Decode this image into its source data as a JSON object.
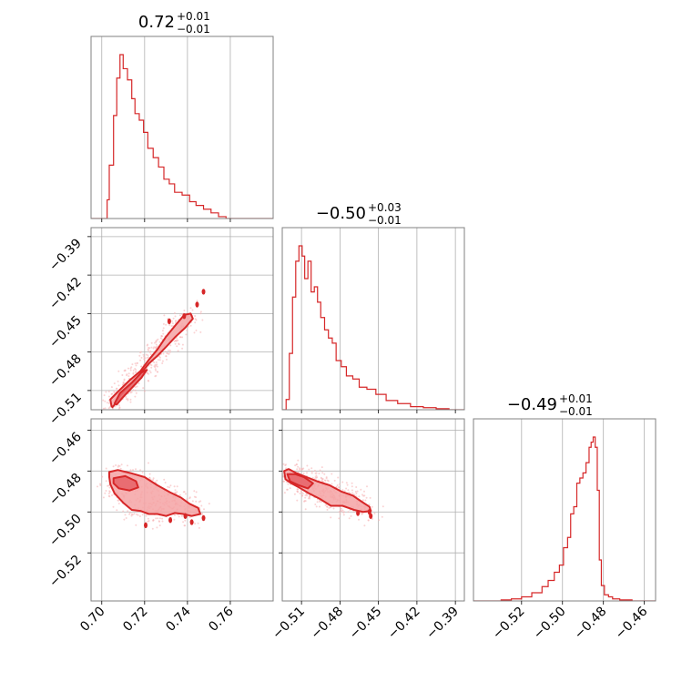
{
  "chart_data": {
    "type": "corner",
    "color": "#d62728",
    "parameters": [
      {
        "title_value": "0.72",
        "title_plus": "+0.01",
        "title_minus": "−0.01",
        "range": [
          0.695,
          0.78
        ],
        "ticks": [
          0.7,
          0.72,
          0.74,
          0.76
        ],
        "tick_labels": [
          "0.70",
          "0.72",
          "0.74",
          "0.76"
        ]
      },
      {
        "title_value": "−0.50",
        "title_plus": "+0.03",
        "title_minus": "−0.01",
        "range": [
          -0.525,
          -0.383
        ],
        "ticks": [
          -0.51,
          -0.48,
          -0.45,
          -0.42,
          -0.39
        ],
        "tick_labels": [
          "−0.51",
          "−0.48",
          "−0.45",
          "−0.42",
          "−0.39"
        ]
      },
      {
        "title_value": "−0.49",
        "title_plus": "+0.01",
        "title_minus": "−0.01",
        "range": [
          -0.5435,
          -0.4545
        ],
        "ticks": [
          -0.52,
          -0.5,
          -0.48,
          -0.46
        ],
        "tick_labels": [
          "−0.52",
          "−0.50",
          "−0.48",
          "−0.46"
        ]
      }
    ],
    "histograms": [
      {
        "param": 0,
        "edges": [
          0.695,
          0.7025,
          0.7035,
          0.7055,
          0.707,
          0.7085,
          0.71,
          0.712,
          0.714,
          0.7155,
          0.7175,
          0.7195,
          0.7215,
          0.724,
          0.7265,
          0.729,
          0.7315,
          0.734,
          0.7375,
          0.741,
          0.744,
          0.7475,
          0.751,
          0.7545,
          0.758,
          0.78
        ],
        "counts": [
          0,
          20,
          57,
          110,
          150,
          175,
          160,
          148,
          128,
          112,
          105,
          92,
          75,
          65,
          55,
          42,
          37,
          28,
          25,
          18,
          14,
          10,
          6,
          2,
          0
        ]
      },
      {
        "param": 1,
        "edges": [
          -0.525,
          -0.522,
          -0.5195,
          -0.517,
          -0.5145,
          -0.512,
          -0.5095,
          -0.5075,
          -0.505,
          -0.5025,
          -0.5,
          -0.4975,
          -0.495,
          -0.492,
          -0.489,
          -0.486,
          -0.483,
          -0.479,
          -0.475,
          -0.47,
          -0.465,
          -0.459,
          -0.452,
          -0.444,
          -0.435,
          -0.425,
          -0.415,
          -0.405,
          -0.395,
          -0.383
        ],
        "counts": [
          0,
          10,
          55,
          110,
          145,
          160,
          150,
          128,
          145,
          115,
          120,
          105,
          90,
          78,
          70,
          65,
          48,
          42,
          33,
          30,
          22,
          20,
          15,
          9,
          6,
          3,
          2,
          1,
          0
        ]
      },
      {
        "param": 2,
        "edges": [
          -0.5435,
          -0.53,
          -0.525,
          -0.52,
          -0.515,
          -0.51,
          -0.507,
          -0.504,
          -0.5015,
          -0.4995,
          -0.4975,
          -0.496,
          -0.4945,
          -0.493,
          -0.4915,
          -0.49,
          -0.4885,
          -0.487,
          -0.486,
          -0.485,
          -0.484,
          -0.483,
          -0.482,
          -0.481,
          -0.4795,
          -0.4775,
          -0.4755,
          -0.472,
          -0.466,
          -0.4545
        ],
        "counts": [
          0,
          1,
          2,
          4,
          8,
          14,
          20,
          28,
          35,
          52,
          62,
          85,
          92,
          115,
          120,
          125,
          135,
          150,
          155,
          160,
          150,
          108,
          40,
          15,
          6,
          4,
          2,
          1,
          0
        ]
      }
    ],
    "density_2d": [
      {
        "x_param": 0,
        "y_param": 1,
        "outer_contour": [
          [
            0.7045,
            -0.522
          ],
          [
            0.704,
            -0.517
          ],
          [
            0.7075,
            -0.511
          ],
          [
            0.713,
            -0.502
          ],
          [
            0.718,
            -0.495
          ],
          [
            0.722,
            -0.486
          ],
          [
            0.726,
            -0.478
          ],
          [
            0.73,
            -0.468
          ],
          [
            0.7345,
            -0.459
          ],
          [
            0.7385,
            -0.451
          ],
          [
            0.7415,
            -0.45
          ],
          [
            0.7425,
            -0.454
          ],
          [
            0.739,
            -0.461
          ],
          [
            0.7345,
            -0.468
          ],
          [
            0.73,
            -0.476
          ],
          [
            0.726,
            -0.483
          ],
          [
            0.722,
            -0.489
          ],
          [
            0.718,
            -0.497
          ],
          [
            0.713,
            -0.506
          ],
          [
            0.7085,
            -0.514
          ],
          [
            0.706,
            -0.521
          ],
          [
            0.705,
            -0.523
          ]
        ],
        "inner_contour": [
          [
            0.706,
            -0.52
          ],
          [
            0.7085,
            -0.512
          ],
          [
            0.714,
            -0.504
          ],
          [
            0.7185,
            -0.496
          ],
          [
            0.721,
            -0.494
          ],
          [
            0.7185,
            -0.5
          ],
          [
            0.714,
            -0.508
          ],
          [
            0.7095,
            -0.516
          ],
          [
            0.707,
            -0.521
          ]
        ],
        "islands": [
          [
            0.7475,
            -0.433
          ],
          [
            0.7315,
            -0.456
          ],
          [
            0.7385,
            -0.452
          ],
          [
            0.7445,
            -0.443
          ]
        ]
      },
      {
        "x_param": 0,
        "y_param": 2,
        "outer_contour": [
          [
            0.7035,
            -0.4805
          ],
          [
            0.7075,
            -0.4795
          ],
          [
            0.7135,
            -0.481
          ],
          [
            0.72,
            -0.483
          ],
          [
            0.726,
            -0.487
          ],
          [
            0.732,
            -0.4905
          ],
          [
            0.737,
            -0.493
          ],
          [
            0.741,
            -0.496
          ],
          [
            0.745,
            -0.498
          ],
          [
            0.746,
            -0.501
          ],
          [
            0.742,
            -0.502
          ],
          [
            0.738,
            -0.501
          ],
          [
            0.734,
            -0.5005
          ],
          [
            0.73,
            -0.502
          ],
          [
            0.726,
            -0.501
          ],
          [
            0.722,
            -0.501
          ],
          [
            0.718,
            -0.4995
          ],
          [
            0.714,
            -0.499
          ],
          [
            0.71,
            -0.4955
          ],
          [
            0.706,
            -0.491
          ],
          [
            0.704,
            -0.4865
          ],
          [
            0.7035,
            -0.483
          ]
        ],
        "inner_contour": [
          [
            0.7055,
            -0.4835
          ],
          [
            0.711,
            -0.4825
          ],
          [
            0.716,
            -0.485
          ],
          [
            0.717,
            -0.488
          ],
          [
            0.713,
            -0.4895
          ],
          [
            0.708,
            -0.4885
          ],
          [
            0.7055,
            -0.486
          ]
        ],
        "islands": [
          [
            0.7205,
            -0.5065
          ],
          [
            0.7475,
            -0.503
          ],
          [
            0.732,
            -0.504
          ],
          [
            0.742,
            -0.505
          ],
          [
            0.739,
            -0.502
          ]
        ]
      },
      {
        "x_param": 1,
        "y_param": 2,
        "outer_contour": [
          [
            -0.5235,
            -0.48
          ],
          [
            -0.52,
            -0.479
          ],
          [
            -0.514,
            -0.481
          ],
          [
            -0.506,
            -0.483
          ],
          [
            -0.498,
            -0.485
          ],
          [
            -0.488,
            -0.487
          ],
          [
            -0.479,
            -0.49
          ],
          [
            -0.47,
            -0.492
          ],
          [
            -0.463,
            -0.495
          ],
          [
            -0.457,
            -0.4975
          ],
          [
            -0.456,
            -0.4995
          ],
          [
            -0.462,
            -0.5
          ],
          [
            -0.469,
            -0.499
          ],
          [
            -0.478,
            -0.497
          ],
          [
            -0.487,
            -0.497
          ],
          [
            -0.496,
            -0.4935
          ],
          [
            -0.504,
            -0.491
          ],
          [
            -0.512,
            -0.488
          ],
          [
            -0.518,
            -0.486
          ],
          [
            -0.5225,
            -0.484
          ]
        ],
        "inner_contour": [
          [
            -0.521,
            -0.4815
          ],
          [
            -0.515,
            -0.4815
          ],
          [
            -0.508,
            -0.483
          ],
          [
            -0.501,
            -0.486
          ],
          [
            -0.505,
            -0.4885
          ],
          [
            -0.512,
            -0.487
          ],
          [
            -0.519,
            -0.485
          ]
        ],
        "islands": [
          [
            -0.466,
            -0.5005
          ],
          [
            -0.457,
            -0.5
          ],
          [
            -0.456,
            -0.502
          ]
        ]
      }
    ]
  }
}
